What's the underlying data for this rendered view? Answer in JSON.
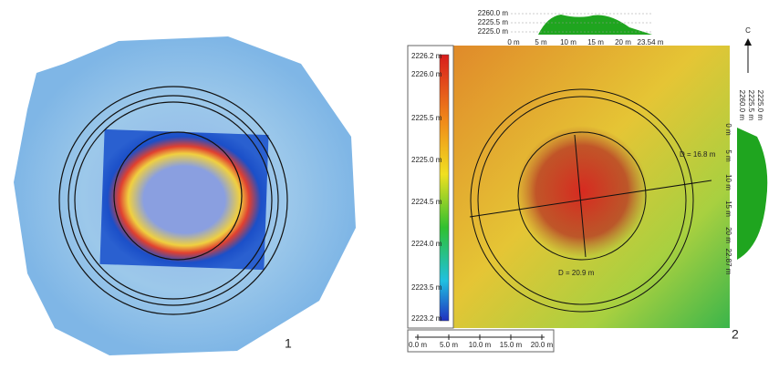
{
  "panel1": {
    "label": "1"
  },
  "panel2": {
    "label": "2",
    "north": "С",
    "diameters": [
      "D = 16.8 m",
      "D = 20.9 m"
    ],
    "colorbar": {
      "ticks": [
        "2226.2 m",
        "2226.0 m",
        "2225.5 m",
        "2225.0 m",
        "2224.5 m",
        "2224.0 m",
        "2223.5 m",
        "2223.2 m"
      ]
    },
    "scalebar": [
      "0.0 m",
      "5.0 m",
      "10.0 m",
      "15.0 m",
      "20.0 m"
    ],
    "top_profile": {
      "y_labels": [
        "2260.0 m",
        "2225.5 m",
        "2225.0 m"
      ],
      "x_labels": [
        "0 m",
        "5 m",
        "10 m",
        "15 m",
        "20 m",
        "23.54 m"
      ]
    },
    "right_profile": {
      "y_labels": [
        "2260.0 m",
        "2225.5 m",
        "2225.0 m"
      ],
      "x_labels": [
        "0 m",
        "5 m",
        "10 m",
        "15 m",
        "20 m",
        "22.87 m"
      ]
    }
  }
}
